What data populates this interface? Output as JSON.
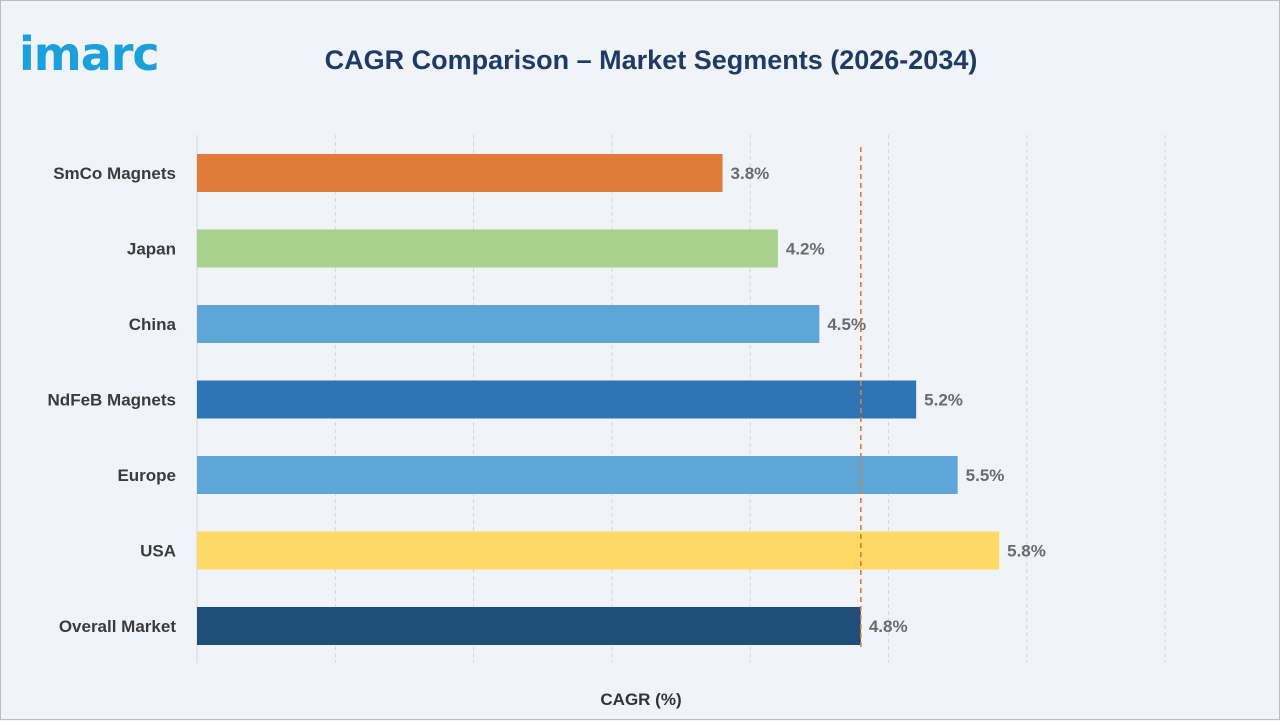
{
  "logo": {
    "text": "imarc"
  },
  "chart_data": {
    "type": "bar",
    "orientation": "horizontal",
    "title": "CAGR Comparison – Market Segments (2026-2034)",
    "xlabel": "CAGR (%)",
    "ylabel": "",
    "xlim": [
      0,
      7
    ],
    "grid": true,
    "categories": [
      "SmCo Magnets",
      "Japan",
      "China",
      "NdFeB Magnets",
      "Europe",
      "USA",
      "Overall Market"
    ],
    "values": [
      3.8,
      4.2,
      4.5,
      5.2,
      5.5,
      5.8,
      4.8
    ],
    "value_labels": [
      "3.8%",
      "4.2%",
      "4.5%",
      "5.2%",
      "5.5%",
      "5.8%",
      "4.8%"
    ],
    "colors": [
      "#e07b39",
      "#a9d18e",
      "#5ea5d8",
      "#2e75b6",
      "#5ea5d8",
      "#ffd966",
      "#1f4e79"
    ],
    "reference_line": {
      "value": 4.8,
      "style": "dashed",
      "color": "#e07b39"
    }
  }
}
